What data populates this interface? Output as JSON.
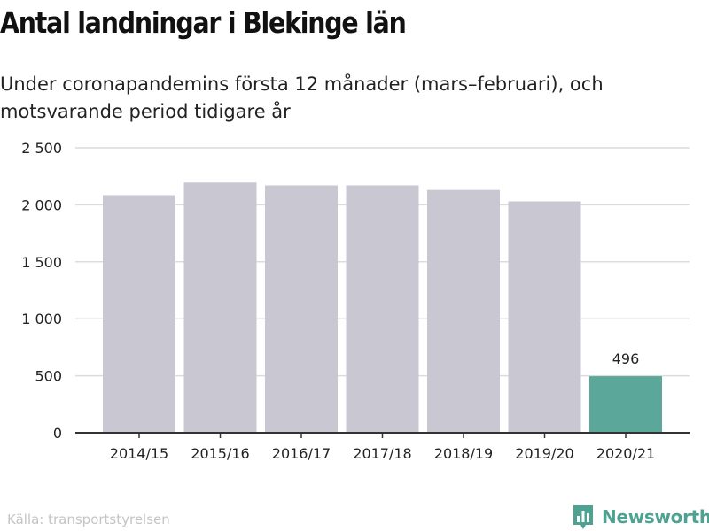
{
  "header": {
    "title": "Antal landningar i Blekinge län",
    "subtitle": "Under coronapandemins första 12 månader (mars–februari), och motsvarande period tidigare år"
  },
  "footer": {
    "source": "Källa: transportstyrelsen",
    "brand": "Newsworthy"
  },
  "colors": {
    "bar": "#c8c7d2",
    "highlight": "#5ba79a",
    "grid": "#dcdcdc",
    "axis": "#333333",
    "brand": "#4fa291"
  },
  "chart_data": {
    "type": "bar",
    "title": "Antal landningar i Blekinge län",
    "subtitle": "Under coronapandemins första 12 månader (mars–februari), och motsvarande period tidigare år",
    "categories": [
      "2014/15",
      "2015/16",
      "2016/17",
      "2017/18",
      "2018/19",
      "2019/20",
      "2020/21"
    ],
    "values": [
      2085,
      2195,
      2170,
      2170,
      2130,
      2030,
      496
    ],
    "highlight_index": 6,
    "data_labels": [
      {
        "index": 6,
        "text": "496"
      }
    ],
    "ylim": [
      0,
      2500
    ],
    "yticks": [
      0,
      500,
      1000,
      1500,
      2000,
      2500
    ],
    "ytick_labels": [
      "0",
      "500",
      "1 000",
      "1 500",
      "2 000",
      "2 500"
    ],
    "xlabel": "",
    "ylabel": "",
    "grid": true,
    "legend": "none"
  }
}
